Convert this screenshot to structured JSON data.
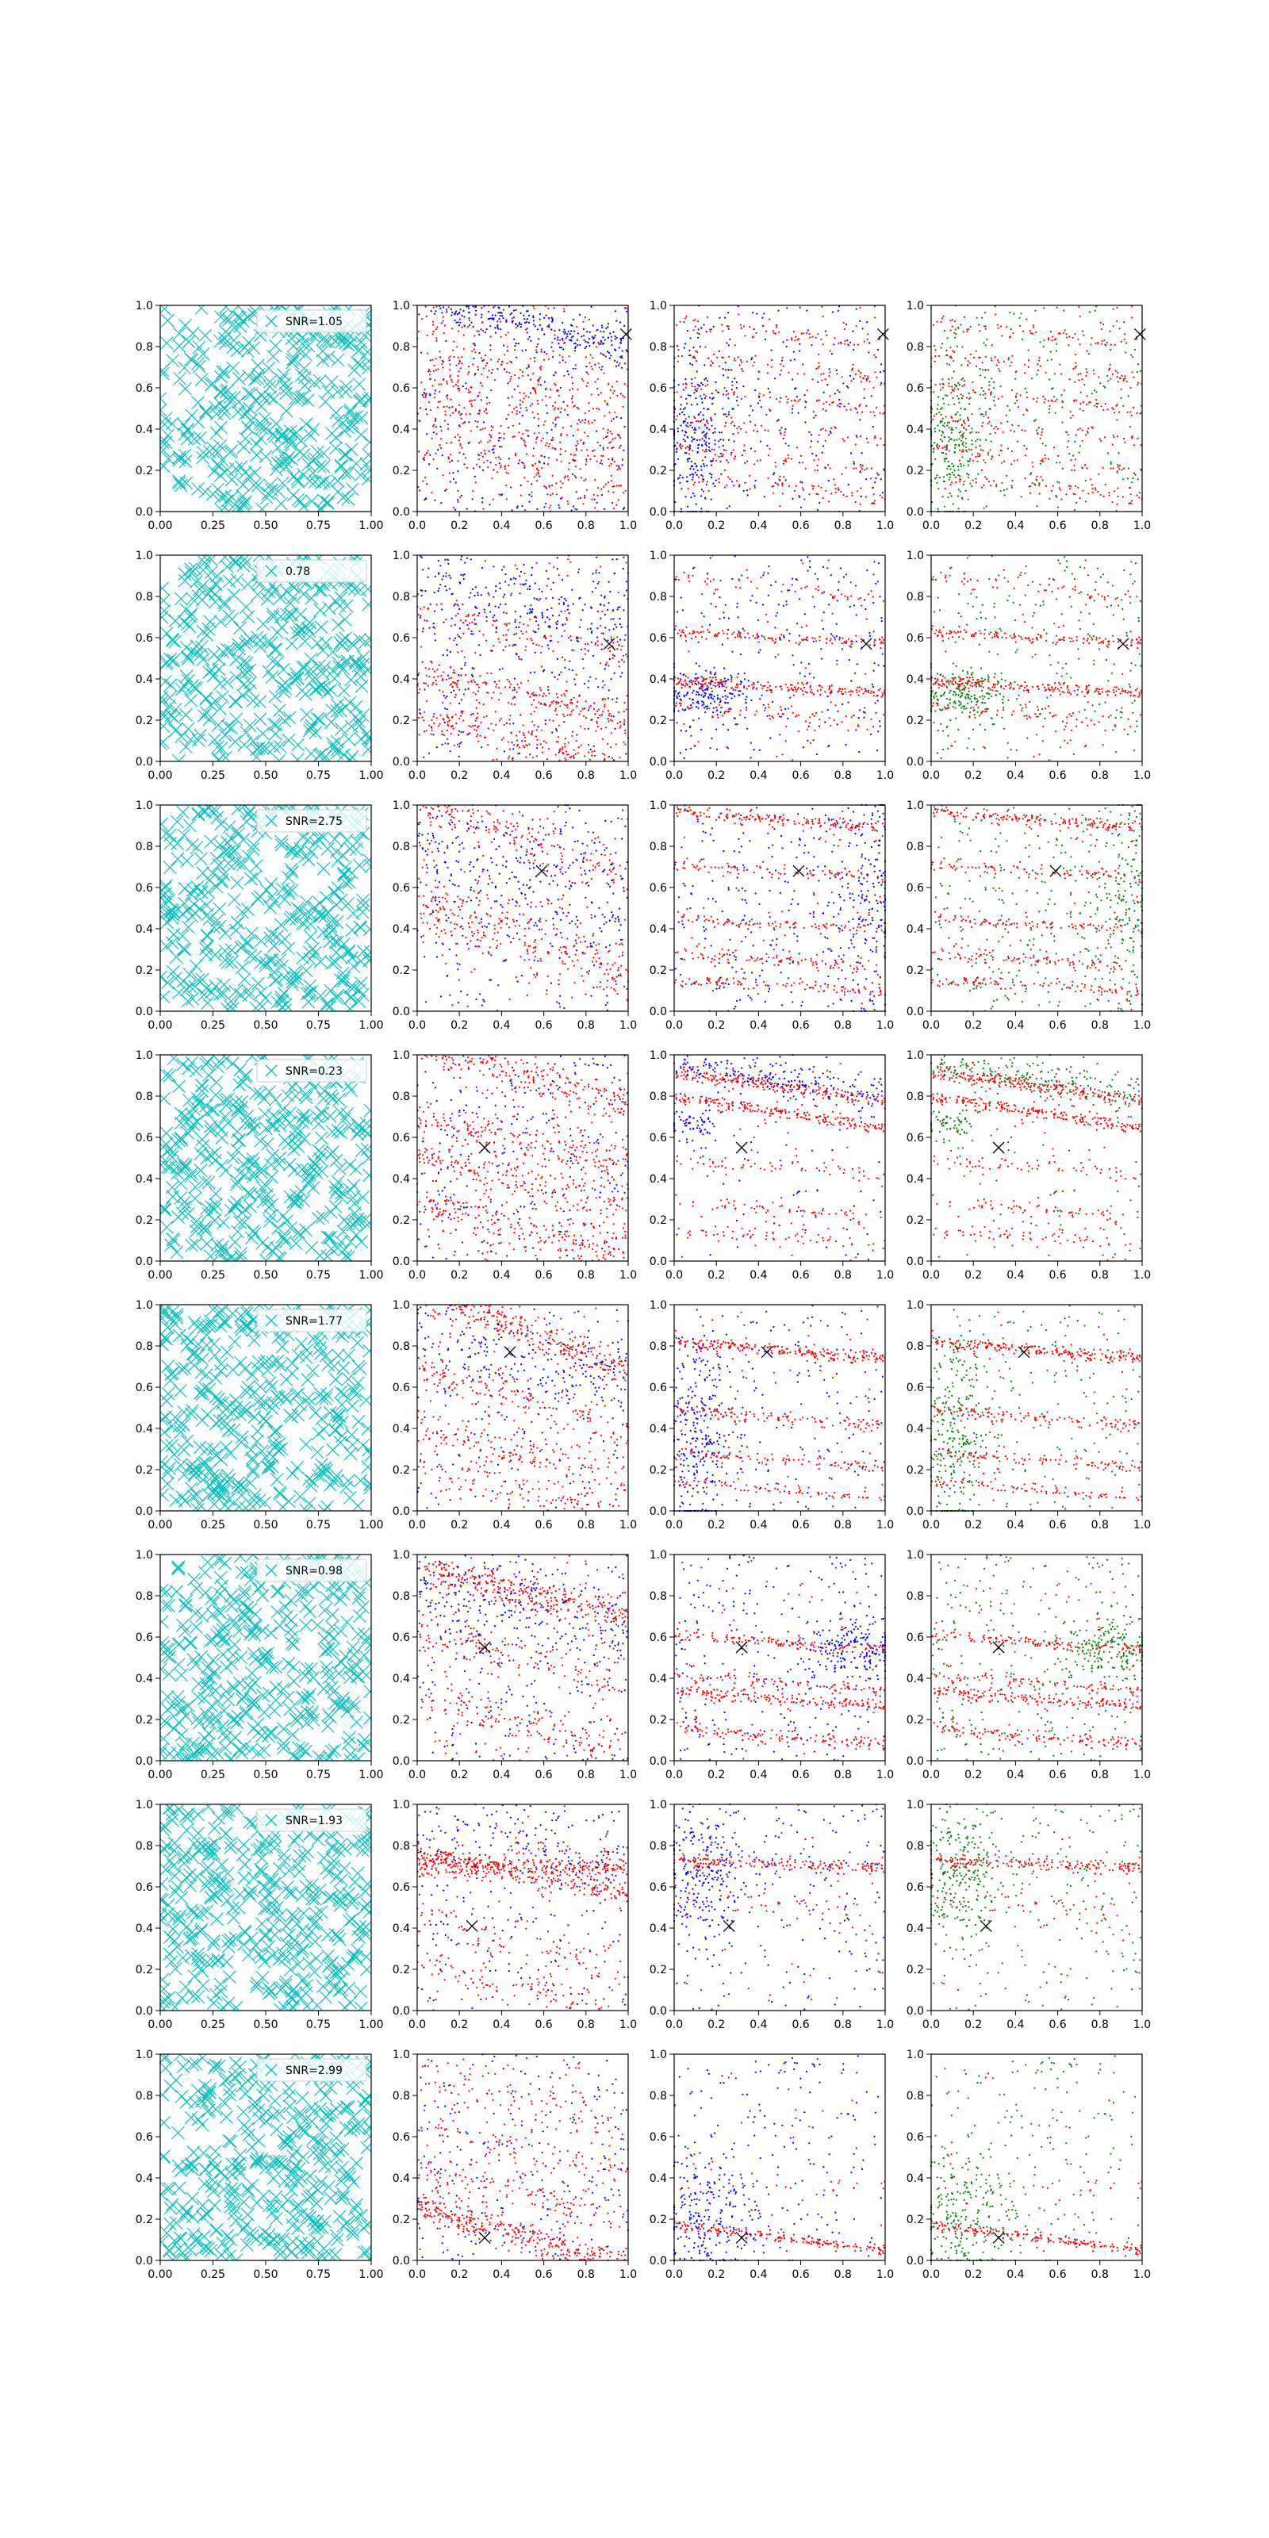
{
  "chart_data": {
    "type": "scatter",
    "grid": false,
    "layout": "8 rows x 4 columns of scatter panels",
    "axes": {
      "xlim": [
        0,
        1
      ],
      "ylim": [
        0,
        1
      ],
      "col0_xticks": [
        "0.00",
        "0.25",
        "0.50",
        "0.75",
        "1.00"
      ],
      "xticks": [
        "0.0",
        "0.2",
        "0.4",
        "0.6",
        "0.8",
        "1.0"
      ],
      "yticks": [
        "0.0",
        "0.2",
        "0.4",
        "0.6",
        "0.8",
        "1.0"
      ]
    },
    "colors": {
      "cyan_marker": "#00bfbf",
      "blue": "#0000ff",
      "red": "#ff0000",
      "green": "#008000",
      "cross": "#000000"
    },
    "column_series": [
      {
        "column": 1,
        "marker": "x",
        "colors": [
          "cyan_marker"
        ]
      },
      {
        "column": 2,
        "marker": "dot",
        "colors": [
          "blue",
          "red"
        ]
      },
      {
        "column": 3,
        "marker": "dot",
        "colors": [
          "blue",
          "red"
        ]
      },
      {
        "column": 4,
        "marker": "dot",
        "colors": [
          "green",
          "red"
        ]
      }
    ],
    "rows": [
      {
        "legend": "SNR=1.05",
        "cross": [
          0.99,
          0.86
        ],
        "panel2": {
          "bands": [
            {
              "c": 0.92,
              "s": -0.25,
              "w": 0.05,
              "n": 280,
              "col": "blue"
            },
            {
              "c": 0.72,
              "s": -0.25,
              "w": 0.1,
              "n": 160,
              "col": "red"
            },
            {
              "c": 0.48,
              "s": -0.3,
              "w": 0.12,
              "n": 220,
              "col": "red"
            },
            {
              "c": 0.22,
              "s": -0.3,
              "w": 0.12,
              "n": 200,
              "col": "red"
            }
          ],
          "bg": {
            "blue": 280,
            "red": 120
          }
        },
        "panel3": {
          "bands": [
            {
              "c": 0.86,
              "s": -0.12,
              "w": 0.02,
              "n": 60,
              "col": "red"
            },
            {
              "c": 0.7,
              "s": -0.12,
              "w": 0.02,
              "n": 70,
              "col": "red"
            },
            {
              "c": 0.55,
              "s": -0.12,
              "w": 0.02,
              "n": 70,
              "col": "red"
            },
            {
              "c": 0.4,
              "s": -0.12,
              "w": 0.02,
              "n": 60,
              "col": "red"
            },
            {
              "c": 0.25,
              "s": -0.12,
              "w": 0.02,
              "n": 70,
              "col": "red"
            },
            {
              "c": 0.12,
              "s": -0.12,
              "w": 0.02,
              "n": 60,
              "col": "red"
            }
          ],
          "bg": {
            "blue": 260,
            "red": 60
          },
          "cluster": {
            "x": 0.1,
            "y": 0.38,
            "sx": 0.08,
            "sy": 0.2,
            "n": 240,
            "col": "blue"
          }
        }
      },
      {
        "legend": "0.78",
        "cross": [
          0.91,
          0.57
        ],
        "panel2": {
          "bands": [
            {
              "c": 0.32,
              "s": -0.25,
              "w": 0.05,
              "n": 220,
              "col": "red"
            },
            {
              "c": 0.1,
              "s": -0.25,
              "w": 0.05,
              "n": 200,
              "col": "red"
            },
            {
              "c": 0.62,
              "s": -0.2,
              "w": 0.04,
              "n": 120,
              "col": "red"
            },
            {
              "c": 0.78,
              "s": -0.2,
              "w": 0.1,
              "n": 180,
              "col": "blue"
            }
          ],
          "bg": {
            "blue": 260,
            "red": 100
          }
        },
        "panel3": {
          "bands": [
            {
              "c": 0.36,
              "s": -0.06,
              "w": 0.015,
              "n": 180,
              "col": "red"
            },
            {
              "c": 0.6,
              "s": -0.05,
              "w": 0.015,
              "n": 120,
              "col": "red"
            },
            {
              "c": 0.22,
              "s": -0.08,
              "w": 0.02,
              "n": 60,
              "col": "red"
            },
            {
              "c": 0.85,
              "s": -0.1,
              "w": 0.02,
              "n": 50,
              "col": "red"
            }
          ],
          "bg": {
            "blue": 240,
            "red": 60
          },
          "cluster": {
            "x": 0.15,
            "y": 0.33,
            "sx": 0.1,
            "sy": 0.06,
            "n": 180,
            "col": "blue"
          }
        }
      },
      {
        "legend": "SNR=2.75",
        "cross": [
          0.59,
          0.68
        ],
        "panel2": {
          "bands": [
            {
              "c": 0.85,
              "s": -0.35,
              "w": 0.06,
              "n": 180,
              "col": "red"
            },
            {
              "c": 0.35,
              "s": -0.35,
              "w": 0.08,
              "n": 260,
              "col": "red"
            },
            {
              "c": 0.65,
              "s": -0.3,
              "w": 0.12,
              "n": 160,
              "col": "blue"
            }
          ],
          "bg": {
            "blue": 240,
            "red": 100
          }
        },
        "panel3": {
          "bands": [
            {
              "c": 0.93,
              "s": -0.08,
              "w": 0.015,
              "n": 150,
              "col": "red"
            },
            {
              "c": 0.68,
              "s": -0.06,
              "w": 0.015,
              "n": 80,
              "col": "red"
            },
            {
              "c": 0.42,
              "s": -0.06,
              "w": 0.015,
              "n": 90,
              "col": "red"
            },
            {
              "c": 0.25,
              "s": -0.06,
              "w": 0.015,
              "n": 90,
              "col": "red"
            },
            {
              "c": 0.12,
              "s": -0.06,
              "w": 0.015,
              "n": 90,
              "col": "red"
            }
          ],
          "bg": {
            "blue": 260,
            "red": 60
          },
          "cluster": {
            "x": 0.92,
            "y": 0.55,
            "sx": 0.08,
            "sy": 0.25,
            "n": 160,
            "col": "blue"
          }
        }
      },
      {
        "legend": "SNR=0.23",
        "cross": [
          0.32,
          0.55
        ],
        "panel2": {
          "bands": [
            {
              "c": 0.9,
              "s": -0.3,
              "w": 0.05,
              "n": 240,
              "col": "red"
            },
            {
              "c": 0.58,
              "s": -0.25,
              "w": 0.05,
              "n": 200,
              "col": "red"
            },
            {
              "c": 0.38,
              "s": -0.25,
              "w": 0.05,
              "n": 180,
              "col": "red"
            },
            {
              "c": 0.16,
              "s": -0.25,
              "w": 0.05,
              "n": 200,
              "col": "red"
            }
          ],
          "bg": {
            "blue": 280,
            "red": 80
          }
        },
        "panel3": {
          "bands": [
            {
              "c": 0.85,
              "s": -0.15,
              "w": 0.02,
              "n": 220,
              "col": "red"
            },
            {
              "c": 0.72,
              "s": -0.15,
              "w": 0.015,
              "n": 200,
              "col": "red"
            },
            {
              "c": 0.45,
              "s": -0.08,
              "w": 0.02,
              "n": 60,
              "col": "red"
            },
            {
              "c": 0.25,
              "s": -0.08,
              "w": 0.02,
              "n": 60,
              "col": "red"
            },
            {
              "c": 0.12,
              "s": -0.08,
              "w": 0.02,
              "n": 60,
              "col": "red"
            },
            {
              "c": 0.88,
              "s": -0.15,
              "w": 0.04,
              "n": 180,
              "col": "blue"
            }
          ],
          "bg": {
            "blue": 80,
            "red": 60
          },
          "cluster": {
            "x": 0.08,
            "y": 0.66,
            "sx": 0.06,
            "sy": 0.04,
            "n": 60,
            "col": "blue"
          }
        }
      },
      {
        "legend": "SNR=1.77",
        "cross": [
          0.44,
          0.77
        ],
        "panel2": {
          "bands": [
            {
              "c": 0.88,
              "s": -0.4,
              "w": 0.04,
              "n": 300,
              "col": "red"
            },
            {
              "c": 0.55,
              "s": -0.3,
              "w": 0.06,
              "n": 160,
              "col": "red"
            },
            {
              "c": 0.28,
              "s": -0.25,
              "w": 0.05,
              "n": 140,
              "col": "red"
            },
            {
              "c": 0.1,
              "s": -0.25,
              "w": 0.05,
              "n": 120,
              "col": "red"
            },
            {
              "c": 0.75,
              "s": -0.3,
              "w": 0.1,
              "n": 160,
              "col": "blue"
            }
          ],
          "bg": {
            "blue": 180,
            "red": 80
          }
        },
        "panel3": {
          "bands": [
            {
              "c": 0.78,
              "s": -0.08,
              "w": 0.015,
              "n": 200,
              "col": "red"
            },
            {
              "c": 0.45,
              "s": -0.08,
              "w": 0.015,
              "n": 110,
              "col": "red"
            },
            {
              "c": 0.25,
              "s": -0.08,
              "w": 0.015,
              "n": 90,
              "col": "red"
            },
            {
              "c": 0.1,
              "s": -0.08,
              "w": 0.015,
              "n": 80,
              "col": "red"
            }
          ],
          "bg": {
            "blue": 160,
            "red": 60
          },
          "cluster": {
            "x": 0.12,
            "y": 0.35,
            "sx": 0.07,
            "sy": 0.25,
            "n": 260,
            "col": "blue"
          }
        }
      },
      {
        "legend": "SNR=0.98",
        "cross": [
          0.32,
          0.55
        ],
        "panel2": {
          "bands": [
            {
              "c": 0.82,
              "s": -0.25,
              "w": 0.04,
              "n": 300,
              "col": "red"
            },
            {
              "c": 0.5,
              "s": -0.25,
              "w": 0.05,
              "n": 120,
              "col": "red"
            },
            {
              "c": 0.18,
              "s": -0.25,
              "w": 0.05,
              "n": 120,
              "col": "red"
            },
            {
              "c": 0.72,
              "s": -0.25,
              "w": 0.1,
              "n": 180,
              "col": "blue"
            }
          ],
          "bg": {
            "blue": 260,
            "red": 100
          }
        },
        "panel3": {
          "bands": [
            {
              "c": 0.3,
              "s": -0.08,
              "w": 0.015,
              "n": 160,
              "col": "red"
            },
            {
              "c": 0.57,
              "s": -0.08,
              "w": 0.015,
              "n": 120,
              "col": "red"
            },
            {
              "c": 0.38,
              "s": -0.08,
              "w": 0.015,
              "n": 80,
              "col": "red"
            },
            {
              "c": 0.12,
              "s": -0.08,
              "w": 0.015,
              "n": 120,
              "col": "red"
            }
          ],
          "bg": {
            "blue": 260,
            "red": 60
          },
          "cluster": {
            "x": 0.85,
            "y": 0.55,
            "sx": 0.12,
            "sy": 0.08,
            "n": 160,
            "col": "blue"
          }
        }
      },
      {
        "legend": "SNR=1.93",
        "cross": [
          0.26,
          0.41
        ],
        "panel2": {
          "bands": [
            {
              "c": 0.66,
              "s": -0.2,
              "w": 0.03,
              "n": 200,
              "col": "red"
            },
            {
              "c": 0.7,
              "s": 0.0,
              "w": 0.03,
              "n": 280,
              "col": "red"
            },
            {
              "c": 0.3,
              "s": -0.25,
              "w": 0.06,
              "n": 80,
              "col": "red"
            },
            {
              "c": 0.1,
              "s": -0.25,
              "w": 0.05,
              "n": 80,
              "col": "red"
            },
            {
              "c": 0.8,
              "s": -0.2,
              "w": 0.1,
              "n": 120,
              "col": "blue"
            }
          ],
          "bg": {
            "blue": 200,
            "red": 80
          }
        },
        "panel3": {
          "bands": [
            {
              "c": 0.71,
              "s": -0.04,
              "w": 0.015,
              "n": 160,
              "col": "red"
            },
            {
              "c": 0.5,
              "s": -0.06,
              "w": 0.03,
              "n": 40,
              "col": "red"
            }
          ],
          "bg": {
            "blue": 200,
            "red": 40
          },
          "cluster": {
            "x": 0.15,
            "y": 0.65,
            "sx": 0.1,
            "sy": 0.15,
            "n": 220,
            "col": "blue"
          }
        }
      },
      {
        "legend": "SNR=2.99",
        "cross": [
          0.32,
          0.11
        ],
        "panel2": {
          "bands": [
            {
              "c": 0.12,
              "s": -0.3,
              "w": 0.04,
              "n": 340,
              "col": "red"
            },
            {
              "c": 0.32,
              "s": -0.25,
              "w": 0.05,
              "n": 120,
              "col": "red"
            },
            {
              "c": 0.55,
              "s": -0.25,
              "w": 0.06,
              "n": 80,
              "col": "red"
            },
            {
              "c": 0.78,
              "s": -0.25,
              "w": 0.06,
              "n": 80,
              "col": "red"
            }
          ],
          "bg": {
            "blue": 220,
            "red": 80
          }
        },
        "panel3": {
          "bands": [
            {
              "c": 0.11,
              "s": -0.12,
              "w": 0.012,
              "n": 160,
              "col": "red"
            },
            {
              "c": 0.4,
              "s": -0.08,
              "w": 0.03,
              "n": 20,
              "col": "red"
            }
          ],
          "bg": {
            "blue": 160,
            "red": 30
          },
          "cluster": {
            "x": 0.15,
            "y": 0.2,
            "sx": 0.12,
            "sy": 0.18,
            "n": 220,
            "col": "blue"
          }
        }
      }
    ]
  }
}
